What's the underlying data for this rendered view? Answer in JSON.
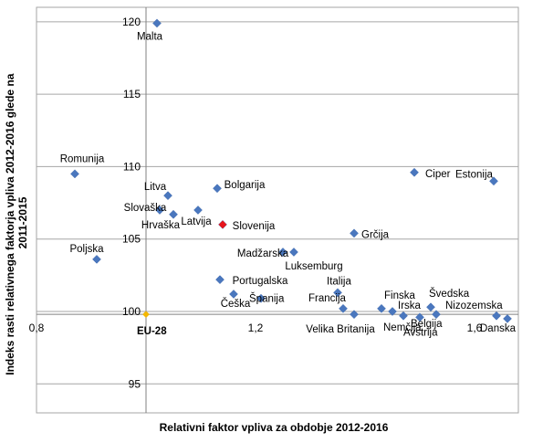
{
  "chart_data": {
    "type": "scatter",
    "xlabel": "Relativni faktor vpliva za obdobje 2012-2016",
    "ylabel": "Indeks rasti relativnega faktorja vpliva 2012-2016 glede na 2011-2015",
    "xlim": [
      0.8,
      1.68
    ],
    "ylim": [
      93,
      121
    ],
    "x_ticks": [
      "0,8",
      "1,2",
      "1,6"
    ],
    "y_ticks": [
      "95",
      "100",
      "105",
      "110",
      "115",
      "120"
    ],
    "grid": true,
    "colors": {
      "default": "#4a77be",
      "highlight": "#e8141b",
      "reference": "#f5b800"
    },
    "points": [
      {
        "name": "Malta",
        "x": 1.02,
        "y": 119.9
      },
      {
        "name": "Romunija",
        "x": 0.87,
        "y": 109.5
      },
      {
        "name": "Litva",
        "x": 1.04,
        "y": 108.0
      },
      {
        "name": "Bolgarija",
        "x": 1.13,
        "y": 108.5
      },
      {
        "name": "Slovaška",
        "x": 1.025,
        "y": 107.0
      },
      {
        "name": "Hrvaška",
        "x": 1.05,
        "y": 106.7
      },
      {
        "name": "Latvija",
        "x": 1.095,
        "y": 107.0
      },
      {
        "name": "Slovenija",
        "x": 1.14,
        "y": 106.0,
        "highlight": true
      },
      {
        "name": "Poljska",
        "x": 0.91,
        "y": 103.6
      },
      {
        "name": "Madžarska",
        "x": 1.25,
        "y": 104.1
      },
      {
        "name": "Luksemburg",
        "x": 1.27,
        "y": 104.1
      },
      {
        "name": "Portugalska",
        "x": 1.135,
        "y": 102.2
      },
      {
        "name": "Češka",
        "x": 1.16,
        "y": 101.2
      },
      {
        "name": "Španija",
        "x": 1.21,
        "y": 100.9
      },
      {
        "name": "Grčija",
        "x": 1.38,
        "y": 105.4
      },
      {
        "name": "Ciper",
        "x": 1.49,
        "y": 109.6
      },
      {
        "name": "Italija",
        "x": 1.35,
        "y": 101.3
      },
      {
        "name": "Francija",
        "x": 1.36,
        "y": 100.2
      },
      {
        "name": "Velika Britanija",
        "x": 1.38,
        "y": 99.8
      },
      {
        "name": "Finska",
        "x": 1.43,
        "y": 100.2
      },
      {
        "name": "Irska",
        "x": 1.45,
        "y": 100.0
      },
      {
        "name": "Nemčija",
        "x": 1.47,
        "y": 99.7
      },
      {
        "name": "Avstrija",
        "x": 1.5,
        "y": 99.6
      },
      {
        "name": "Švedska",
        "x": 1.52,
        "y": 100.3
      },
      {
        "name": "Belgija",
        "x": 1.53,
        "y": 99.8
      },
      {
        "name": "Estonija",
        "x": 1.635,
        "y": 109.0
      },
      {
        "name": "Nizozemska",
        "x": 1.64,
        "y": 99.7
      },
      {
        "name": "Danska",
        "x": 1.66,
        "y": 99.5
      },
      {
        "name": "EU-28",
        "x": 1.0,
        "y": 99.8,
        "reference": true
      }
    ]
  }
}
